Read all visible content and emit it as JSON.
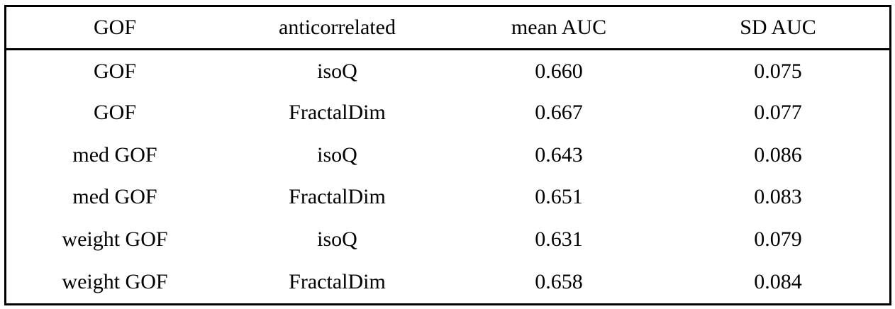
{
  "table": {
    "headers": [
      "GOF",
      "anticorrelated",
      "mean AUC",
      "SD AUC"
    ],
    "rows": [
      [
        "GOF",
        "isoQ",
        "0.660",
        "0.075"
      ],
      [
        "GOF",
        "FractalDim",
        "0.667",
        "0.077"
      ],
      [
        "med GOF",
        "isoQ",
        "0.643",
        "0.086"
      ],
      [
        "med GOF",
        "FractalDim",
        "0.651",
        "0.083"
      ],
      [
        "weight GOF",
        "isoQ",
        "0.631",
        "0.079"
      ],
      [
        "weight GOF",
        "FractalDim",
        "0.658",
        "0.084"
      ]
    ]
  }
}
